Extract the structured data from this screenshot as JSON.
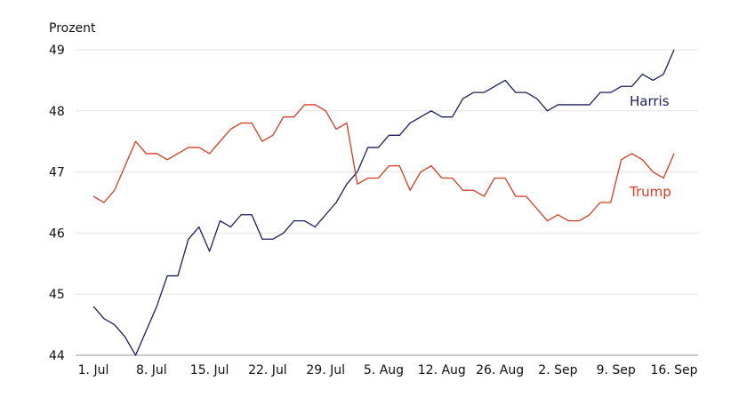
{
  "chart_data": {
    "type": "line",
    "ylabel": "Prozent",
    "ylim": [
      44,
      49
    ],
    "yticks": [
      44,
      45,
      46,
      47,
      48,
      49
    ],
    "x_tick_labels": [
      "1. Jul",
      "8. Jul",
      "15. Jul",
      "22. Jul",
      "29. Jul",
      "5. Aug",
      "12. Aug",
      "26. Aug",
      "2. Sep",
      "9. Sep",
      "16. Sep"
    ],
    "grid": "horizontal",
    "series": [
      {
        "name": "Harris",
        "color": "#1b1f5c",
        "values": [
          44.8,
          44.6,
          44.5,
          44.3,
          44.0,
          44.4,
          44.8,
          45.3,
          45.3,
          45.9,
          46.1,
          45.7,
          46.2,
          46.1,
          46.3,
          46.3,
          45.9,
          45.9,
          46.0,
          46.2,
          46.2,
          46.1,
          46.3,
          46.5,
          46.8,
          47.0,
          47.4,
          47.4,
          47.6,
          47.6,
          47.8,
          47.9,
          48.0,
          47.9,
          47.9,
          48.2,
          48.3,
          48.3,
          48.4,
          48.5,
          48.3,
          48.3,
          48.2,
          48.0,
          48.1,
          48.1,
          48.1,
          48.1,
          48.3,
          48.3,
          48.4,
          48.4,
          48.6,
          48.5,
          48.6,
          49.0
        ]
      },
      {
        "name": "Trump",
        "color": "#d63a1f",
        "values": [
          46.6,
          46.5,
          46.7,
          47.1,
          47.5,
          47.3,
          47.3,
          47.2,
          47.3,
          47.4,
          47.4,
          47.3,
          47.5,
          47.7,
          47.8,
          47.8,
          47.5,
          47.6,
          47.9,
          47.9,
          48.1,
          48.1,
          48.0,
          47.7,
          47.8,
          46.8,
          46.9,
          46.9,
          47.1,
          47.1,
          46.7,
          47.0,
          47.1,
          46.9,
          46.9,
          46.7,
          46.7,
          46.6,
          46.9,
          46.9,
          46.6,
          46.6,
          46.4,
          46.2,
          46.3,
          46.2,
          46.2,
          46.3,
          46.5,
          46.5,
          47.2,
          47.3,
          47.2,
          47.0,
          46.9,
          47.3
        ]
      }
    ]
  }
}
